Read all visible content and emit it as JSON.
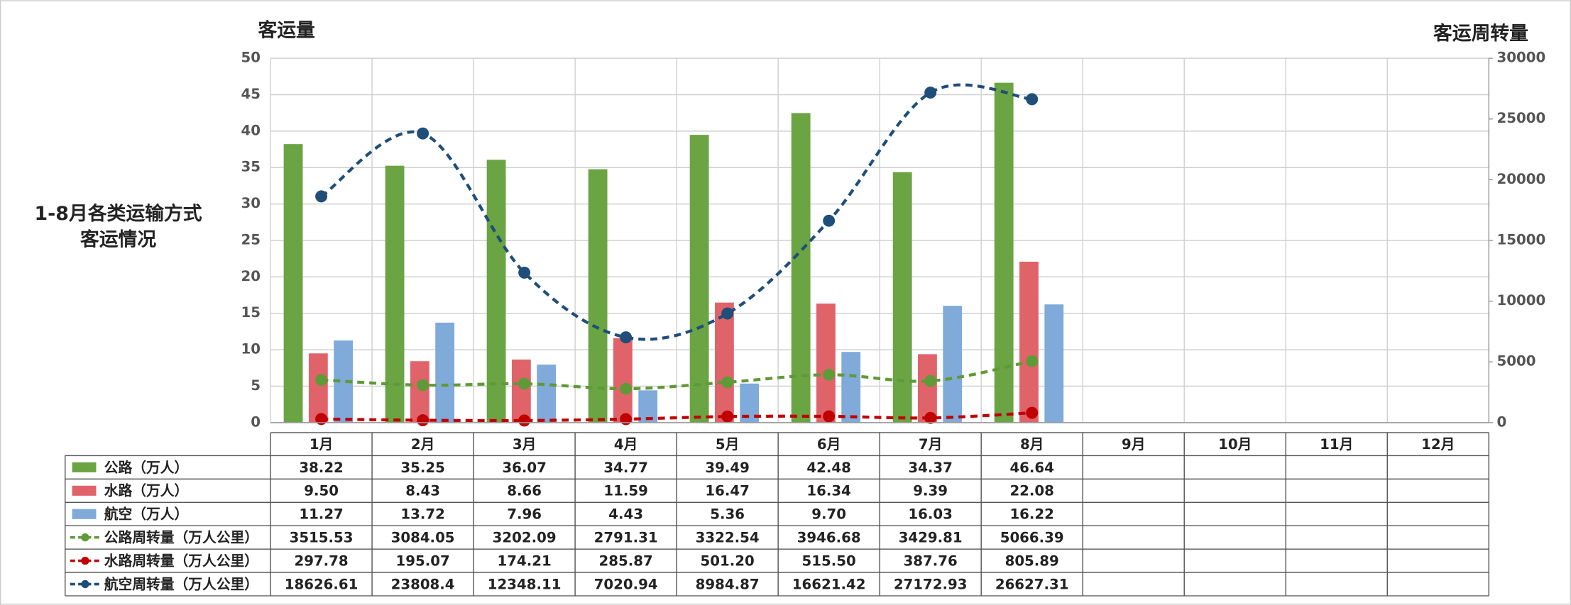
{
  "chart_data": {
    "type": "bar",
    "title_lines": [
      "1-8月各类运输方式",
      "客运情况"
    ],
    "y_label": "客运量",
    "y2_label": "客运周转量",
    "categories": [
      "1月",
      "2月",
      "3月",
      "4月",
      "5月",
      "6月",
      "7月",
      "8月",
      "9月",
      "10月",
      "11月",
      "12月"
    ],
    "ylim": [
      0,
      50
    ],
    "yticks": [
      0,
      5,
      10,
      15,
      20,
      25,
      30,
      35,
      40,
      45,
      50
    ],
    "y2lim": [
      0,
      30000
    ],
    "y2ticks": [
      0,
      5000,
      10000,
      15000,
      20000,
      25000,
      30000
    ],
    "grid": true,
    "series": [
      {
        "name": "公路（万人）",
        "type": "bar",
        "color": "#6aa443",
        "values": [
          38.22,
          35.25,
          36.07,
          34.77,
          39.49,
          42.48,
          34.37,
          46.64,
          null,
          null,
          null,
          null
        ],
        "value_labels": [
          "38.22",
          "35.25",
          "36.07",
          "34.77",
          "39.49",
          "42.48",
          "34.37",
          "46.64",
          null,
          null,
          null,
          null
        ]
      },
      {
        "name": "水路（万人）",
        "type": "bar",
        "color": "#e0636a",
        "values": [
          9.5,
          8.43,
          8.66,
          11.59,
          16.47,
          16.34,
          9.39,
          22.08,
          null,
          null,
          null,
          null
        ],
        "value_labels": [
          "9.50",
          "8.43",
          "8.66",
          "11.59",
          "16.47",
          "16.34",
          "9.39",
          "22.08",
          null,
          null,
          null,
          null
        ]
      },
      {
        "name": "航空（万人）",
        "type": "bar",
        "color": "#7faad9",
        "values": [
          11.27,
          13.72,
          7.96,
          4.43,
          5.36,
          9.7,
          16.03,
          16.22,
          null,
          null,
          null,
          null
        ],
        "value_labels": [
          "11.27",
          "13.72",
          "7.96",
          "4.43",
          "5.36",
          "9.70",
          "16.03",
          "16.22",
          null,
          null,
          null,
          null
        ]
      },
      {
        "name": "公路周转量（万人公里）",
        "type": "line",
        "axis": "y2",
        "color": "#5f9a38",
        "values": [
          3515.53,
          3084.05,
          3202.09,
          2791.31,
          3322.54,
          3946.68,
          3429.81,
          5066.39,
          null,
          null,
          null,
          null
        ],
        "value_labels": [
          "3515.53",
          "3084.05",
          "3202.09",
          "2791.31",
          "3322.54",
          "3946.68",
          "3429.81",
          "5066.39",
          null,
          null,
          null,
          null
        ]
      },
      {
        "name": "水路周转量（万人公里）",
        "type": "line",
        "axis": "y2",
        "color": "#c00000",
        "values": [
          297.78,
          195.07,
          174.21,
          285.87,
          501.2,
          515.5,
          387.76,
          805.89,
          null,
          null,
          null,
          null
        ],
        "value_labels": [
          "297.78",
          "195.07",
          "174.21",
          "285.87",
          "501.20",
          "515.50",
          "387.76",
          "805.89",
          null,
          null,
          null,
          null
        ]
      },
      {
        "name": "航空周转量（万人公里）",
        "type": "line",
        "axis": "y2",
        "color": "#1f4e79",
        "values": [
          18626.61,
          23808.4,
          12348.11,
          7020.94,
          8984.87,
          16621.42,
          27172.93,
          26627.31,
          null,
          null,
          null,
          null
        ],
        "value_labels": [
          "18626.61",
          "23808.4",
          "12348.11",
          "7020.94",
          "8984.87",
          "16621.42",
          "27172.93",
          "26627.31",
          null,
          null,
          null,
          null
        ]
      }
    ]
  }
}
